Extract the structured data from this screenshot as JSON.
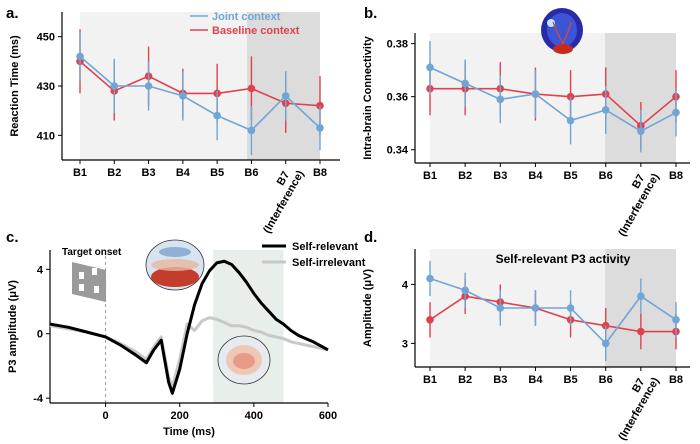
{
  "panel_labels": [
    "a.",
    "b.",
    "c.",
    "d."
  ],
  "colors": {
    "joint": "#6fa6d6",
    "baseline": "#e0424d",
    "self_relevant": "#000000",
    "self_irrelevant": "#c8c8c8",
    "bg_light": "#f2f2f2",
    "bg_dark": "#dcdcdc"
  },
  "chart_data": [
    {
      "id": "a",
      "type": "line",
      "title": "",
      "categories": [
        "B1",
        "B2",
        "B3",
        "B4",
        "B5",
        "B6",
        "B7\n(Interference)",
        "B8"
      ],
      "ylabel": "Reaction Time (ms)",
      "ylim": [
        400,
        460
      ],
      "yticks": [
        410,
        430,
        450
      ],
      "legend": [
        "Joint context",
        "Baseline context"
      ],
      "series": [
        {
          "name": "Joint context",
          "values": [
            442,
            430,
            430,
            426,
            418,
            412,
            426,
            413
          ],
          "err": [
            10,
            11,
            10,
            10,
            10,
            10,
            10,
            9
          ]
        },
        {
          "name": "Baseline context",
          "values": [
            440,
            428,
            434,
            427,
            427,
            429,
            423,
            422
          ],
          "err": [
            13,
            12,
            12,
            10,
            12,
            13,
            12,
            12
          ]
        }
      ]
    },
    {
      "id": "b",
      "type": "line",
      "title": "",
      "categories": [
        "B1",
        "B2",
        "B3",
        "B4",
        "B5",
        "B6",
        "B7\n(Interference)",
        "B8"
      ],
      "ylabel": "Intra-brain Connectivity",
      "ylim": [
        0.335,
        0.384
      ],
      "yticks": [
        0.34,
        0.36,
        0.38
      ],
      "series": [
        {
          "name": "Joint context",
          "values": [
            0.371,
            0.365,
            0.359,
            0.361,
            0.351,
            0.355,
            0.347,
            0.354
          ],
          "err": [
            0.01,
            0.009,
            0.009,
            0.009,
            0.009,
            0.009,
            0.008,
            0.009
          ]
        },
        {
          "name": "Baseline context",
          "values": [
            0.363,
            0.363,
            0.363,
            0.361,
            0.36,
            0.361,
            0.349,
            0.36
          ],
          "err": [
            0.01,
            0.01,
            0.01,
            0.01,
            0.01,
            0.01,
            0.009,
            0.01
          ]
        }
      ]
    },
    {
      "id": "c",
      "type": "line",
      "title": "",
      "xlabel": "Time (ms)",
      "ylabel": "P3 amplitude (μV)",
      "xlim": [
        -150,
        600
      ],
      "ylim": [
        -4.3,
        5.2
      ],
      "xticks": [
        0,
        200,
        400,
        600
      ],
      "yticks": [
        -4,
        0,
        4
      ],
      "annotation": "Target onset",
      "window": [
        290,
        480
      ],
      "legend": [
        "Self-relevant",
        "Self-irrelevant"
      ],
      "series": [
        {
          "name": "Self-relevant",
          "x": [
            -150,
            -100,
            -50,
            0,
            40,
            80,
            110,
            130,
            150,
            170,
            180,
            200,
            220,
            240,
            260,
            280,
            300,
            320,
            340,
            360,
            380,
            400,
            420,
            440,
            460,
            480,
            500,
            520,
            540,
            560,
            600
          ],
          "y": [
            0.6,
            0.4,
            0.1,
            -0.2,
            -0.7,
            -1.3,
            -1.8,
            -1.0,
            -0.4,
            -3.0,
            -3.7,
            -2.2,
            0.0,
            1.8,
            3.1,
            3.9,
            4.4,
            4.5,
            4.3,
            3.8,
            3.2,
            2.5,
            1.9,
            1.4,
            0.9,
            0.6,
            0.2,
            -0.1,
            -0.3,
            -0.5,
            -1.0
          ]
        },
        {
          "name": "Self-irrelevant",
          "x": [
            -150,
            -100,
            -50,
            0,
            40,
            80,
            110,
            130,
            150,
            170,
            180,
            200,
            220,
            240,
            260,
            280,
            300,
            320,
            340,
            360,
            380,
            400,
            420,
            440,
            460,
            480,
            500,
            520,
            540,
            560,
            600
          ],
          "y": [
            0.5,
            0.3,
            0.1,
            -0.2,
            -0.6,
            -1.1,
            -1.6,
            -0.8,
            -0.2,
            -2.7,
            -3.3,
            -1.6,
            0.6,
            0.2,
            0.8,
            1.0,
            0.9,
            0.7,
            0.5,
            0.5,
            0.4,
            0.2,
            0.1,
            -0.1,
            -0.2,
            -0.3,
            -0.5,
            -0.6,
            -0.7,
            -0.8,
            -1.0
          ]
        }
      ]
    },
    {
      "id": "d",
      "type": "line",
      "title": "Self-relevant P3 activity",
      "categories": [
        "B1",
        "B2",
        "B3",
        "B4",
        "B5",
        "B6",
        "B7\n(Interference)",
        "B8"
      ],
      "ylabel": "Amplitude (μV)",
      "ylim": [
        2.6,
        4.6
      ],
      "yticks": [
        3,
        4
      ],
      "series": [
        {
          "name": "Joint context",
          "values": [
            4.1,
            3.9,
            3.6,
            3.6,
            3.6,
            3.0,
            3.8,
            3.4
          ],
          "err": [
            0.3,
            0.3,
            0.3,
            0.3,
            0.3,
            0.3,
            0.3,
            0.3
          ]
        },
        {
          "name": "Baseline context",
          "values": [
            3.4,
            3.8,
            3.7,
            3.6,
            3.4,
            3.3,
            3.2,
            3.2
          ],
          "err": [
            0.3,
            0.3,
            0.3,
            0.3,
            0.3,
            0.3,
            0.3,
            0.3
          ]
        }
      ]
    }
  ]
}
